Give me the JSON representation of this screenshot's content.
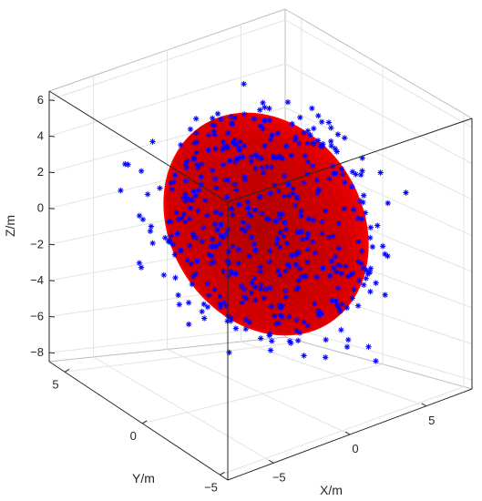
{
  "chart_data": {
    "type": "scatter",
    "subtype": "3d-scatter-with-fitted-ellipsoid",
    "title": "",
    "xlabel": "X/m",
    "ylabel": "Y/m",
    "zlabel": "Z/m",
    "xlim": [
      -8,
      8
    ],
    "ylim": [
      -5.5,
      6
    ],
    "zlim": [
      -8.5,
      6.5
    ],
    "xticks": [
      -5,
      0,
      5
    ],
    "yticks": [
      -5,
      0,
      5
    ],
    "zticks": [
      6,
      4,
      2,
      0,
      -2,
      -4,
      -6,
      -8
    ],
    "grid": true,
    "box": true,
    "view": "3d-perspective",
    "series": [
      {
        "kind": "surface",
        "shape": "ellipsoid",
        "color": "#ff0000",
        "edge_color": "#9a0000",
        "center": [
          0,
          0,
          -1.3
        ],
        "semi_axes": [
          3.2,
          3.0,
          7.0
        ],
        "axis_direction": [
          0.35,
          0.35,
          -0.87
        ]
      },
      {
        "kind": "points",
        "marker": "asterisk",
        "color": "#0000ff",
        "count": 460
      }
    ]
  }
}
